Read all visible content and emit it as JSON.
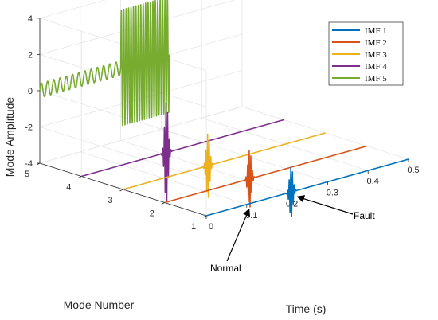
{
  "chart_data": {
    "type": "line",
    "view": "3d",
    "title": "",
    "xlabel": "Time (s)",
    "ylabel": "Mode Number",
    "zlabel": "Mode Amplitude",
    "xlim": [
      0,
      0.5
    ],
    "ylim": [
      1,
      5
    ],
    "zlim": [
      -4,
      4
    ],
    "x_ticks": [
      "0",
      "0.1",
      "0.2",
      "0.3",
      "0.4",
      "0.5"
    ],
    "y_ticks": [
      "1",
      "2",
      "3",
      "4",
      "5"
    ],
    "z_ticks": [
      "-4",
      "-2",
      "0",
      "2",
      "4"
    ],
    "grid": true,
    "legend_position": "top-right",
    "series": [
      {
        "name": "IMF 1",
        "mode": 1,
        "color": "#0072BD",
        "baseline": -4.0,
        "burst_time": 0.21,
        "burst_amplitude": 0.35
      },
      {
        "name": "IMF 2",
        "mode": 2,
        "color": "#D95319",
        "baseline": -4.0,
        "burst_time": 0.21,
        "burst_amplitude": 0.4
      },
      {
        "name": "IMF 3",
        "mode": 3,
        "color": "#EDB120",
        "baseline": -4.0,
        "burst_time": 0.21,
        "burst_amplitude": 0.45
      },
      {
        "name": "IMF 4",
        "mode": 4,
        "color": "#7E2F8E",
        "baseline": -4.0,
        "burst_time": 0.21,
        "burst_amplitude": 0.7
      },
      {
        "name": "IMF 5",
        "mode": 5,
        "color": "#77AC30",
        "baseline": 0,
        "early_amplitude": 0.4,
        "late_amplitude": 3.2,
        "transition_time": 0.2,
        "end_time": 0.32,
        "early_cycles": 13,
        "late_cycles": 20
      }
    ],
    "annotations": [
      {
        "text": "Fault",
        "target_series": "IMF 1",
        "target_time": 0.21
      },
      {
        "text": "Normal",
        "target_series": "IMF 1",
        "target_time": 0.1
      }
    ]
  }
}
